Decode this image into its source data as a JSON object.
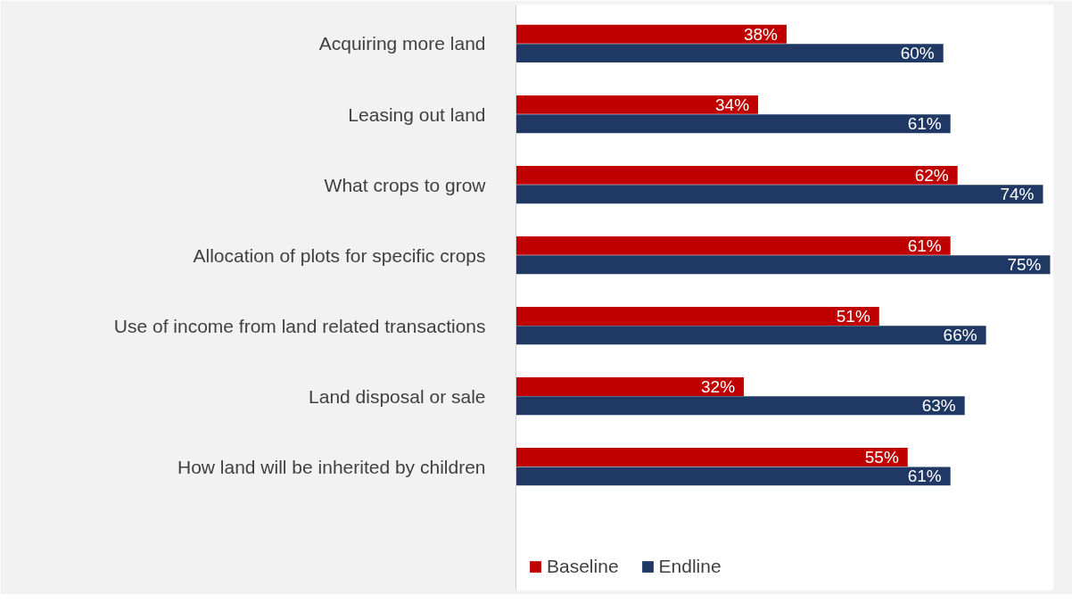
{
  "chart_data": {
    "type": "bar",
    "orientation": "horizontal",
    "categories": [
      "Acquiring more land",
      "Leasing out land",
      "What crops to grow",
      "Allocation of plots for specific crops",
      "Use of income from land related transactions",
      "Land disposal or sale",
      "How land will be inherited by children"
    ],
    "series": [
      {
        "name": "Baseline",
        "color": "#c00000",
        "values": [
          38,
          34,
          62,
          61,
          51,
          32,
          55
        ],
        "value_labels": [
          "38%",
          "34%",
          "62%",
          "61%",
          "51%",
          "32%",
          "55%"
        ]
      },
      {
        "name": "Endline",
        "color": "#1f3864",
        "values": [
          60,
          61,
          74,
          75,
          66,
          63,
          61
        ],
        "value_labels": [
          "60%",
          "61%",
          "74%",
          "75%",
          "66%",
          "63%",
          "61%"
        ]
      }
    ],
    "legend": "bottom",
    "grid": false
  }
}
